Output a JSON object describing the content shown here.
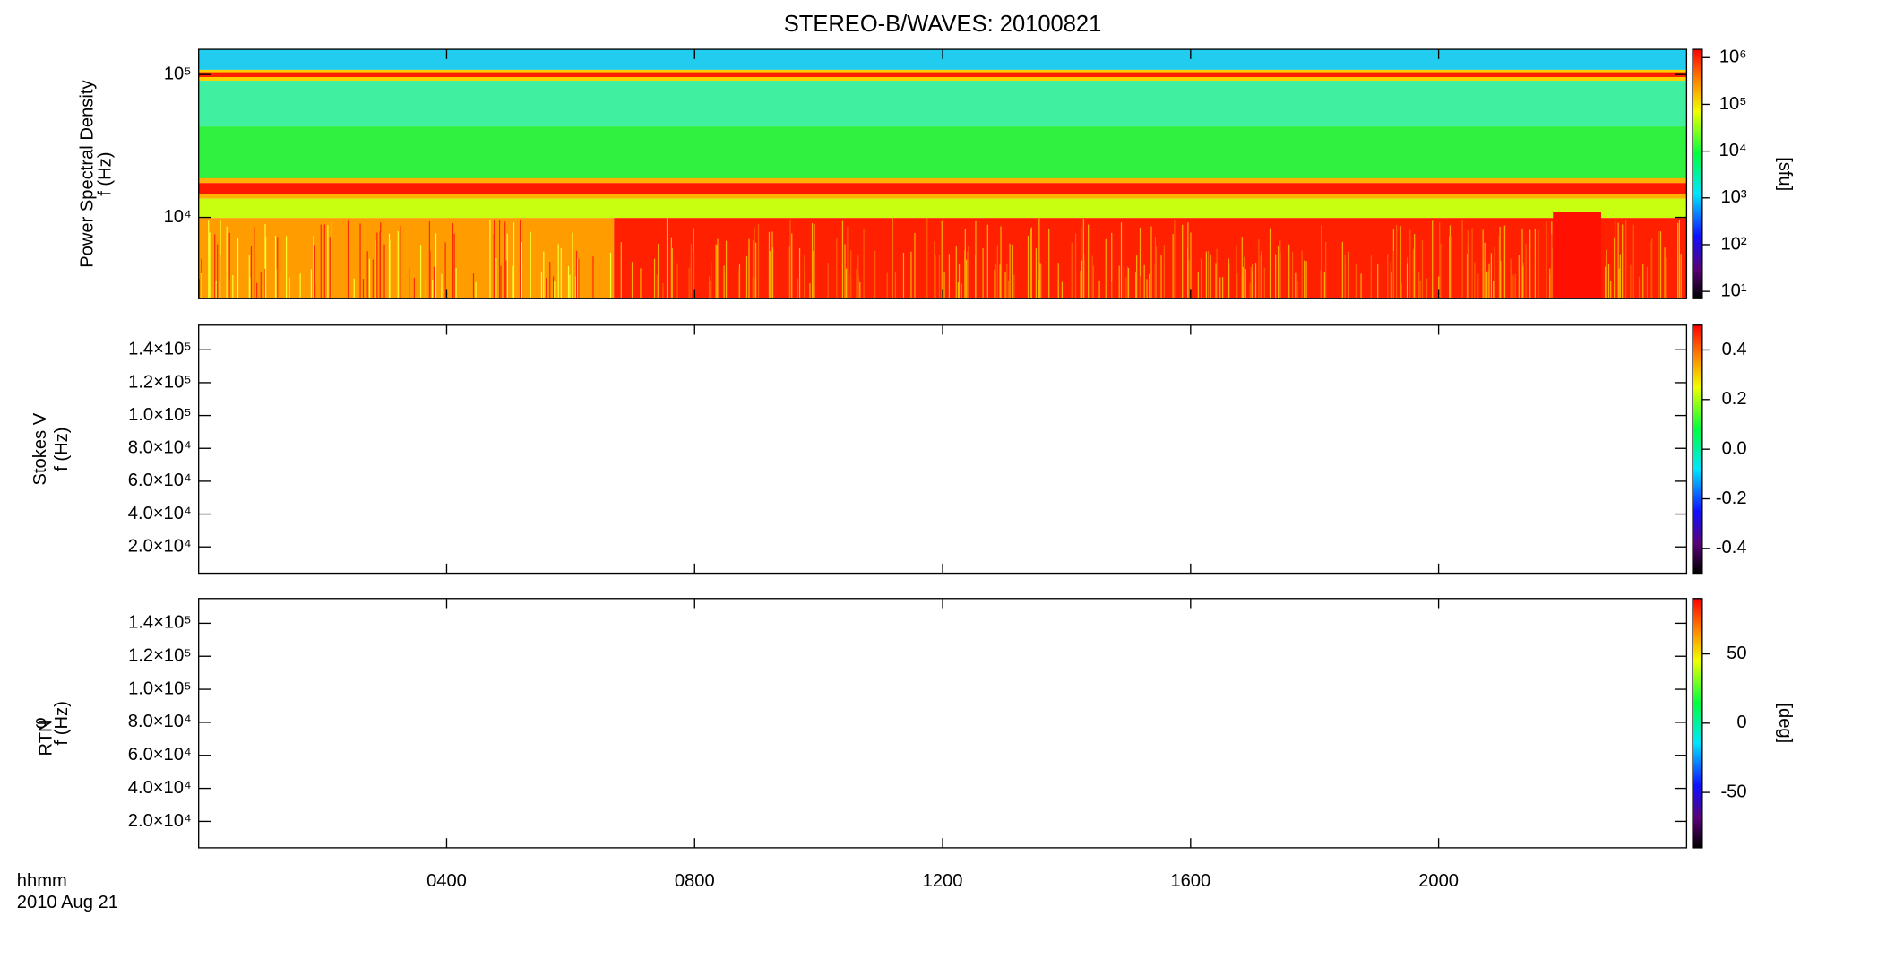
{
  "chart_data": [
    {
      "type": "spectrogram",
      "title": "STEREO-B/WAVES: 20100821",
      "ylabel": [
        "Power Spectral Density",
        "f (Hz)"
      ],
      "ylog": true,
      "ylim": [
        2700,
        150000
      ],
      "yticks": [
        {
          "value": 10000,
          "label": "10⁴"
        },
        {
          "value": 100000,
          "label": "10⁵"
        }
      ],
      "xlim": [
        0,
        24
      ],
      "xticks": [
        4,
        8,
        12,
        16,
        20
      ],
      "colorbar": {
        "label": "[sfu]",
        "log": true,
        "lim": [
          7,
          1500000
        ],
        "ticks": [
          {
            "value": 10,
            "label": "10¹"
          },
          {
            "value": 100,
            "label": "10²"
          },
          {
            "value": 1000,
            "label": "10³"
          },
          {
            "value": 10000,
            "label": "10⁴"
          },
          {
            "value": 100000,
            "label": "10⁵"
          },
          {
            "value": 1000000,
            "label": "10⁶"
          }
        ]
      }
    },
    {
      "type": "spectrogram",
      "ylabel": [
        "Stokes V",
        "f (Hz)"
      ],
      "ylog": false,
      "ylim": [
        4000,
        155000
      ],
      "yticks": [
        {
          "value": 20000,
          "label": "2.0×10⁴"
        },
        {
          "value": 40000,
          "label": "4.0×10⁴"
        },
        {
          "value": 60000,
          "label": "6.0×10⁴"
        },
        {
          "value": 80000,
          "label": "8.0×10⁴"
        },
        {
          "value": 100000,
          "label": "1.0×10⁵"
        },
        {
          "value": 120000,
          "label": "1.2×10⁵"
        },
        {
          "value": 140000,
          "label": "1.4×10⁵"
        }
      ],
      "xlim": [
        0,
        24
      ],
      "xticks": [
        4,
        8,
        12,
        16,
        20
      ],
      "colorbar": {
        "log": false,
        "lim": [
          -0.5,
          0.5
        ],
        "ticks": [
          -0.4,
          -0.2,
          {
            "value": 0,
            "label": "0.0"
          },
          0.2,
          0.4
        ]
      }
    },
    {
      "type": "spectrogram",
      "ylabel": [
        "φ",
        "f (Hz)"
      ],
      "ylabel_subscript": "RTN",
      "ylog": false,
      "ylim": [
        4000,
        155000
      ],
      "yticks": [
        {
          "value": 20000,
          "label": "2.0×10⁴"
        },
        {
          "value": 40000,
          "label": "4.0×10⁴"
        },
        {
          "value": 60000,
          "label": "6.0×10⁴"
        },
        {
          "value": 80000,
          "label": "8.0×10⁴"
        },
        {
          "value": 100000,
          "label": "1.0×10⁵"
        },
        {
          "value": 120000,
          "label": "1.2×10⁵"
        },
        {
          "value": 140000,
          "label": "1.4×10⁵"
        }
      ],
      "xlim": [
        0,
        24
      ],
      "xticks": [
        {
          "value": 4,
          "label": "0400"
        },
        {
          "value": 8,
          "label": "0800"
        },
        {
          "value": 12,
          "label": "1200"
        },
        {
          "value": 16,
          "label": "1600"
        },
        {
          "value": 20,
          "label": "2000"
        }
      ],
      "x_label_lines": [
        "hhmm",
        "2010 Aug 21"
      ],
      "colorbar": {
        "label": "[deg]",
        "log": false,
        "lim": [
          -90,
          90
        ],
        "ticks": [
          -50,
          0,
          50
        ]
      }
    }
  ]
}
